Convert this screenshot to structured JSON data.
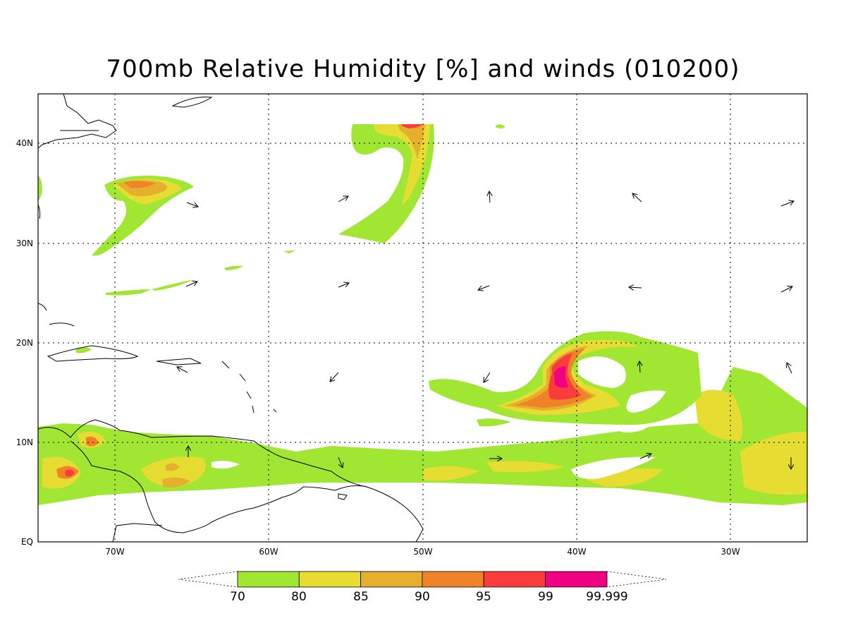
{
  "title": "700mb Relative Humidity [%] and winds (010200)",
  "lon_labels": [
    "70W",
    "60W",
    "50W",
    "40W",
    "30W"
  ],
  "lat_labels": [
    "40N",
    "30N",
    "20N",
    "10N",
    "EQ"
  ],
  "colorbar": {
    "levels": [
      "70",
      "80",
      "85",
      "90",
      "95",
      "99",
      "99.999"
    ],
    "colors": [
      "#a0e632",
      "#e6dc32",
      "#e6af2d",
      "#f08228",
      "#fa3c3c",
      "#f00082"
    ]
  },
  "map_colors": {
    "frame": "#000000",
    "coast": "#000000",
    "grid": "#000000"
  }
}
